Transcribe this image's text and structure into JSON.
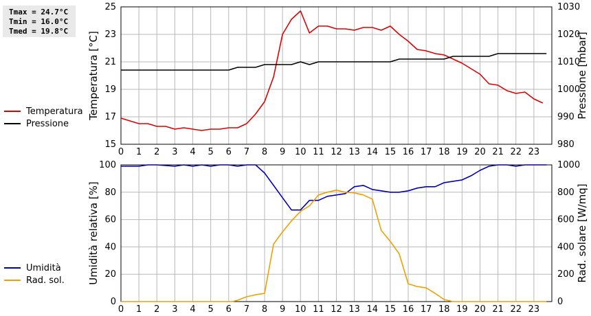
{
  "stats": {
    "tmax": "Tmax = 24.7°C",
    "tmin": "Tmin = 16.0°C",
    "tmed": "Tmed = 19.8°C"
  },
  "colors": {
    "temperature": "#dd0000",
    "pressure": "#000000",
    "humidity": "#0000bb",
    "radiation": "#f0a000",
    "grid": "#b8b8b8",
    "stats_bg": "#e9e9e9"
  },
  "chart_data": [
    {
      "type": "line",
      "x_ticks": [
        "0",
        "1",
        "2",
        "3",
        "4",
        "5",
        "6",
        "7",
        "8",
        "9",
        "10",
        "11",
        "12",
        "13",
        "14",
        "15",
        "16",
        "17",
        "18",
        "19",
        "20",
        "21",
        "22",
        "23"
      ],
      "xlim": [
        0,
        24
      ],
      "grid": true,
      "legend_position": "left",
      "left_axis": {
        "label": "Temperatura [°C]",
        "ylim": [
          15,
          25
        ],
        "ticks": [
          "15",
          "17",
          "19",
          "21",
          "23",
          "25"
        ]
      },
      "right_axis": {
        "label": "Pressione [mbar]",
        "ylim": [
          980,
          1030
        ],
        "ticks": [
          "980",
          "990",
          "1000",
          "1010",
          "1020",
          "1030"
        ]
      },
      "series": [
        {
          "name": "Temperatura",
          "axis": "left",
          "color": "#dd0000",
          "x": [
            0,
            0.5,
            1,
            1.5,
            2,
            2.5,
            3,
            3.5,
            4,
            4.5,
            5,
            5.5,
            6,
            6.5,
            7,
            7.5,
            8,
            8.5,
            9,
            9.5,
            10,
            10.5,
            11,
            11.5,
            12,
            12.5,
            13,
            13.5,
            14,
            14.5,
            15,
            15.5,
            16,
            16.5,
            17,
            17.5,
            18,
            18.5,
            19,
            19.5,
            20,
            20.5,
            21,
            21.5,
            22,
            22.5,
            23,
            23.5
          ],
          "y": [
            16.9,
            16.7,
            16.5,
            16.5,
            16.3,
            16.3,
            16.1,
            16.2,
            16.1,
            16.0,
            16.1,
            16.1,
            16.2,
            16.2,
            16.5,
            17.2,
            18.1,
            19.9,
            23.0,
            24.1,
            24.7,
            23.1,
            23.6,
            23.6,
            23.4,
            23.4,
            23.3,
            23.5,
            23.5,
            23.3,
            23.6,
            23.0,
            22.5,
            21.9,
            21.8,
            21.6,
            21.5,
            21.2,
            20.9,
            20.5,
            20.1,
            19.4,
            19.3,
            18.9,
            18.7,
            18.8,
            18.3,
            18.0
          ]
        },
        {
          "name": "Pressione",
          "axis": "right",
          "color": "#000000",
          "x": [
            0,
            6,
            6.5,
            7.5,
            8,
            9.5,
            10,
            10.5,
            11,
            15,
            15.5,
            18,
            18.5,
            20.5,
            21,
            23.7
          ],
          "y": [
            1007,
            1007,
            1008,
            1008,
            1009,
            1009,
            1010,
            1009,
            1010,
            1010,
            1011,
            1011,
            1012,
            1012,
            1013,
            1013
          ]
        }
      ]
    },
    {
      "type": "line",
      "x_ticks": [
        "0",
        "1",
        "2",
        "3",
        "4",
        "5",
        "6",
        "7",
        "8",
        "9",
        "10",
        "11",
        "12",
        "13",
        "14",
        "15",
        "16",
        "17",
        "18",
        "19",
        "20",
        "21",
        "22",
        "23"
      ],
      "xlim": [
        0,
        24
      ],
      "grid": true,
      "legend_position": "left",
      "left_axis": {
        "label": "Umidità relativa [%]",
        "ylim": [
          0,
          100
        ],
        "ticks": [
          "0",
          "20",
          "40",
          "60",
          "80",
          "100"
        ]
      },
      "right_axis": {
        "label": "Rad. solare [W/mq]",
        "ylim": [
          0,
          1000
        ],
        "ticks": [
          "0",
          "200",
          "400",
          "600",
          "800",
          "1000"
        ]
      },
      "series": [
        {
          "name": "Umidità",
          "axis": "left",
          "color": "#0000bb",
          "x": [
            0,
            1,
            1.5,
            2,
            3,
            3.5,
            4,
            4.5,
            5,
            5.5,
            6,
            6.5,
            7,
            7.5,
            8,
            8.5,
            9,
            9.5,
            10,
            10.5,
            11,
            11.5,
            12,
            12.5,
            13,
            13.5,
            14,
            14.5,
            15,
            15.5,
            16,
            16.5,
            17,
            17.5,
            18,
            18.5,
            19,
            19.5,
            20,
            20.5,
            21,
            21.5,
            22,
            22.5,
            23,
            23.7
          ],
          "y": [
            99,
            99,
            100,
            100,
            99,
            100,
            99,
            100,
            99,
            100,
            100,
            99,
            100,
            100,
            94,
            85,
            76,
            67,
            67,
            74,
            74,
            77,
            78,
            79,
            84,
            85,
            82,
            81,
            80,
            80,
            81,
            83,
            84,
            84,
            87,
            88,
            89,
            92,
            96,
            99,
            100,
            100,
            99,
            100,
            100,
            100
          ]
        },
        {
          "name": "Rad. sol.",
          "axis": "right",
          "color": "#f0a000",
          "x": [
            0,
            6.2,
            6.5,
            7,
            7.5,
            8,
            8.5,
            9,
            9.5,
            10,
            10.5,
            11,
            11.5,
            12,
            12.5,
            13,
            13.5,
            14,
            14.5,
            15,
            15.5,
            16,
            16.5,
            17,
            17.5,
            18,
            18.5,
            19,
            23.7
          ],
          "y": [
            0,
            0,
            10,
            35,
            50,
            60,
            420,
            510,
            590,
            660,
            700,
            780,
            800,
            815,
            800,
            795,
            780,
            750,
            520,
            440,
            350,
            130,
            110,
            100,
            60,
            15,
            0,
            0,
            0
          ]
        }
      ]
    }
  ]
}
